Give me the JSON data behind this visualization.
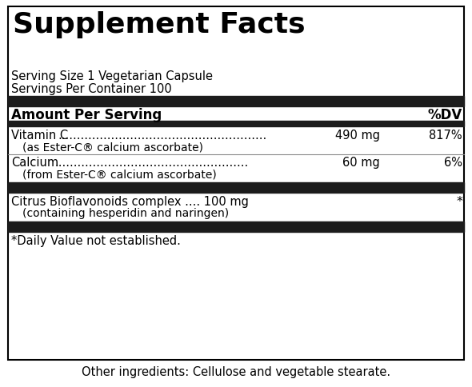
{
  "bg_color": "#ffffff",
  "border_color": "#000000",
  "title": "Supplement Facts",
  "serving_size": "Serving Size 1 Vegetarian Capsule",
  "servings_per": "Servings Per Container 100",
  "amount_label": "Amount Per Serving",
  "dv_label": "%DV",
  "black_bar_color": "#1c1c1c",
  "footnote": "*Daily Value not established.",
  "other_ingredients": "Other ingredients: Cellulose and vegetable stearate.",
  "title_fontsize": 26,
  "header_fontsize": 12,
  "body_fontsize": 10.5,
  "sub_fontsize": 10
}
